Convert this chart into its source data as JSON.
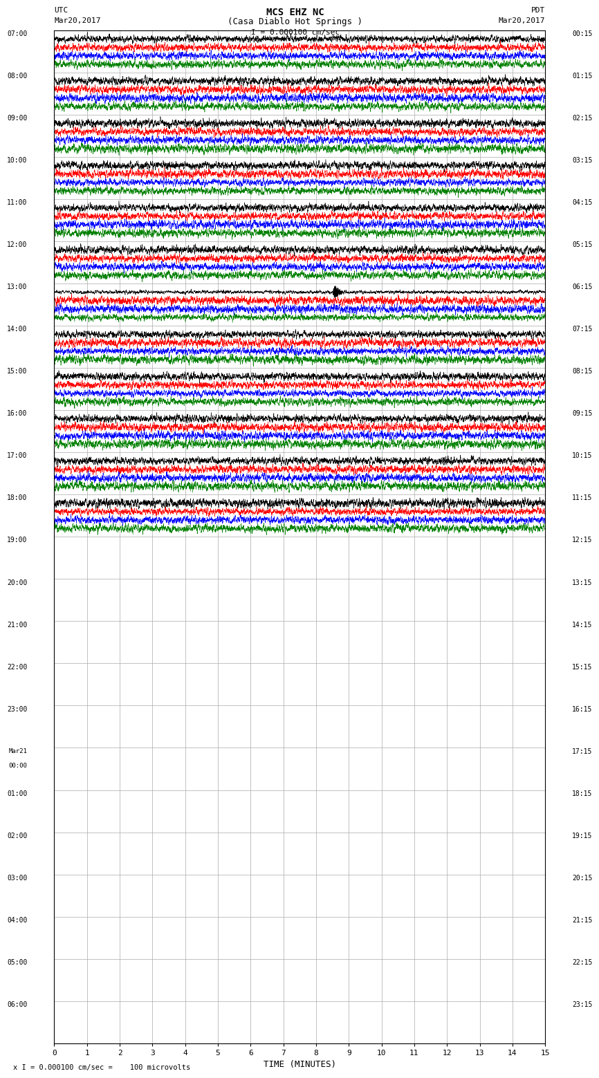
{
  "title_line1": "MCS EHZ NC",
  "title_line2": "(Casa Diablo Hot Springs )",
  "scale_label": "I = 0.000100 cm/sec",
  "bottom_label": "x I = 0.000100 cm/sec =    100 microvolts",
  "xlabel": "TIME (MINUTES)",
  "left_times": [
    "07:00",
    "08:00",
    "09:00",
    "10:00",
    "11:00",
    "12:00",
    "13:00",
    "14:00",
    "15:00",
    "16:00",
    "17:00",
    "18:00",
    "19:00",
    "20:00",
    "21:00",
    "22:00",
    "23:00",
    "Mar21\n00:00",
    "01:00",
    "02:00",
    "03:00",
    "04:00",
    "05:00",
    "06:00"
  ],
  "right_times": [
    "00:15",
    "01:15",
    "02:15",
    "03:15",
    "04:15",
    "05:15",
    "06:15",
    "07:15",
    "08:15",
    "09:15",
    "10:15",
    "11:15",
    "12:15",
    "13:15",
    "14:15",
    "15:15",
    "16:15",
    "17:15",
    "18:15",
    "19:15",
    "20:15",
    "21:15",
    "22:15",
    "23:15"
  ],
  "n_rows": 24,
  "n_traces_per_row": 4,
  "active_rows": 12,
  "trace_colors": [
    "black",
    "red",
    "blue",
    "green"
  ],
  "bg_color": "white",
  "grid_color": "#aaaaaa",
  "fig_width": 8.5,
  "fig_height": 16.13,
  "xmin": 0,
  "xmax": 15,
  "xticks": [
    0,
    1,
    2,
    3,
    4,
    5,
    6,
    7,
    8,
    9,
    10,
    11,
    12,
    13,
    14,
    15
  ],
  "active_noise_amplitude": 0.035,
  "earthquake_row": 6,
  "earthquake_trace": 0,
  "earthquake_time": 8.5,
  "earthquake_amplitude": 0.18
}
